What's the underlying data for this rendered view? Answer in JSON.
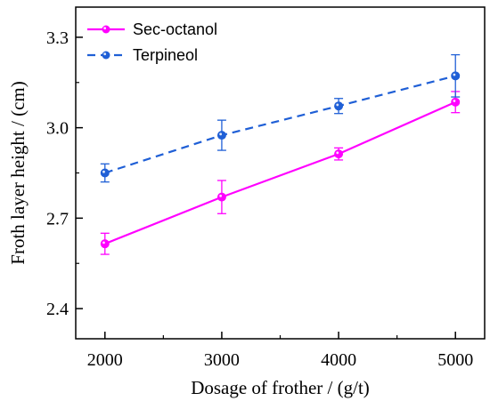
{
  "chart_data": {
    "type": "line",
    "title": "",
    "xlabel": "Dosage of frother / (g/t)",
    "ylabel": "Froth layer height / (cm)",
    "xlim": [
      1750,
      5250
    ],
    "ylim": [
      2.3,
      3.4
    ],
    "xticks": [
      2000,
      3000,
      4000,
      5000
    ],
    "yticks": [
      2.4,
      2.7,
      3.0,
      3.3
    ],
    "ytick_labels": [
      "2.4",
      "2.7",
      "3.0",
      "3.3"
    ],
    "xtick_labels": [
      "2000",
      "3000",
      "4000",
      "5000"
    ],
    "grid": false,
    "legend_position": "top-left",
    "series": [
      {
        "name": "Sec-octanol",
        "color": "#ff00ff",
        "line_style": "solid",
        "x": [
          2000,
          3000,
          4000,
          5000
        ],
        "y": [
          2.615,
          2.77,
          2.913,
          3.085
        ],
        "error": [
          0.035,
          0.055,
          0.02,
          0.035
        ]
      },
      {
        "name": "Terpineol",
        "color": "#1f5fd6",
        "line_style": "dashed",
        "x": [
          2000,
          3000,
          4000,
          5000
        ],
        "y": [
          2.85,
          2.975,
          3.072,
          3.172
        ],
        "error": [
          0.03,
          0.05,
          0.025,
          0.07
        ]
      }
    ]
  }
}
